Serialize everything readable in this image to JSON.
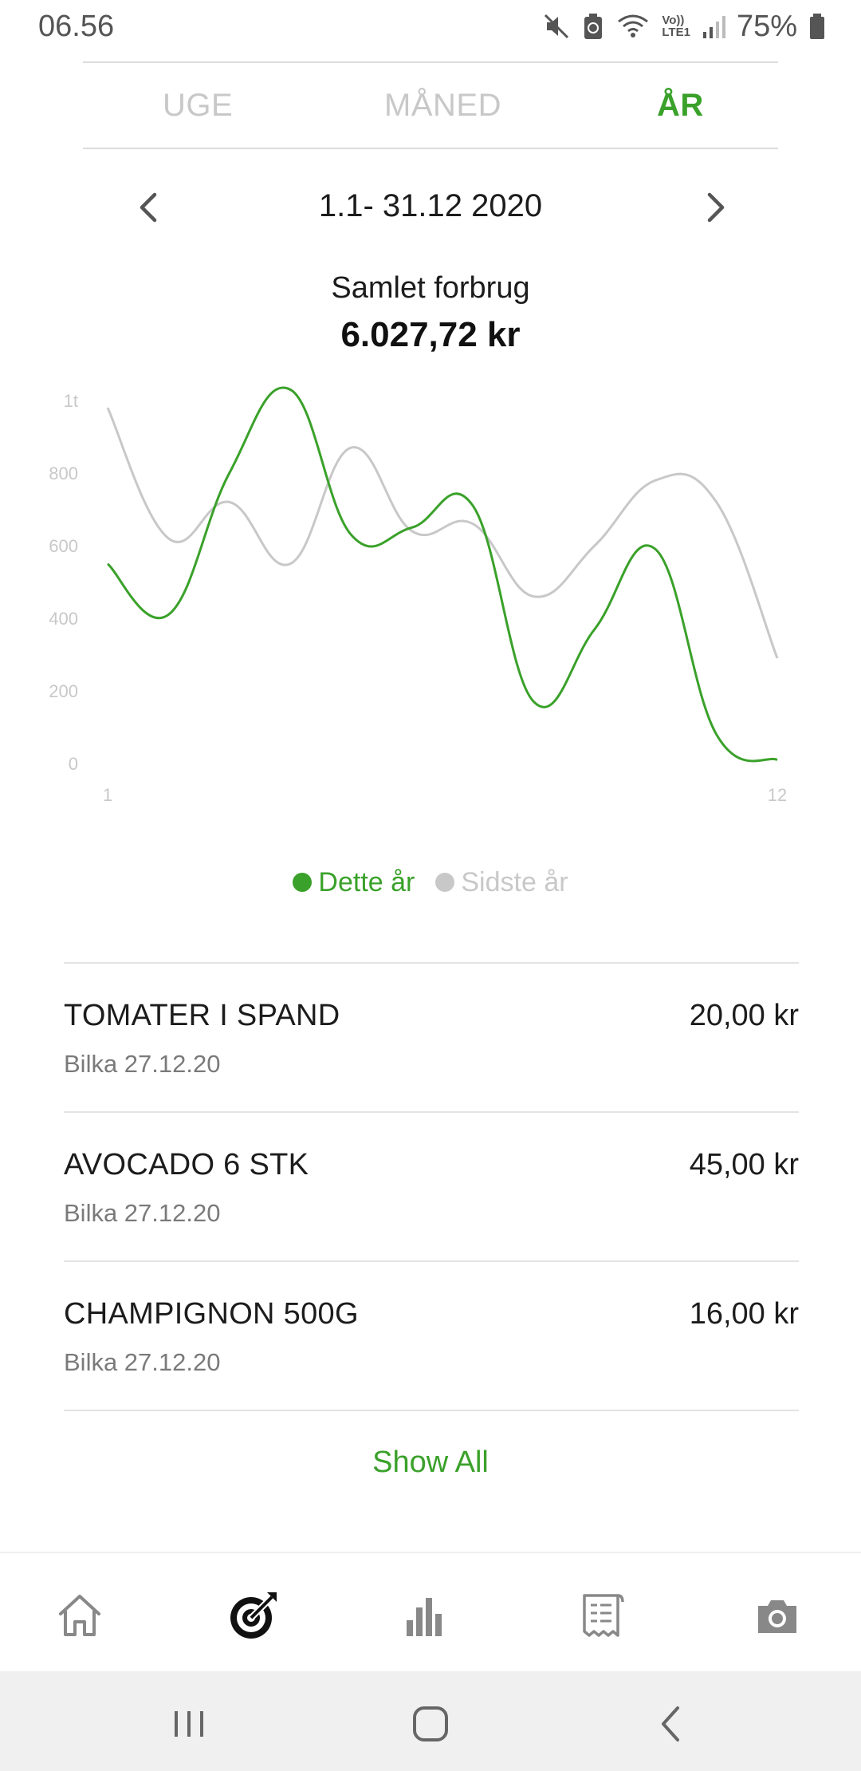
{
  "status_bar": {
    "time": "06.56",
    "battery_percent": "75%",
    "network_label_top": "Vo))",
    "network_label_bottom": "LTE1",
    "icons": [
      "mute-icon",
      "battery-saver-icon",
      "wifi-icon",
      "volte-icon",
      "signal-icon",
      "battery-icon"
    ]
  },
  "period_tabs": {
    "items": [
      {
        "label": "UGE",
        "active": false
      },
      {
        "label": "MÅNED",
        "active": false
      },
      {
        "label": "ÅR",
        "active": true
      }
    ]
  },
  "date_range": {
    "label": "1.1- 31.12 2020"
  },
  "summary": {
    "title": "Samlet forbrug",
    "total": "6.027,72 kr"
  },
  "chart_data": {
    "type": "line",
    "x": [
      1,
      2,
      3,
      4,
      5,
      6,
      7,
      8,
      9,
      10,
      11,
      12
    ],
    "x_tick_labels": [
      "1",
      "12"
    ],
    "y_tick_labels": [
      "0",
      "200",
      "400",
      "600",
      "800",
      "1t"
    ],
    "ylim": [
      0,
      1000
    ],
    "grid": false,
    "series": [
      {
        "name": "Dette år",
        "color": "#3aa12a",
        "values": [
          550,
          410,
          800,
          1030,
          630,
          650,
          710,
          170,
          370,
          590,
          80,
          10
        ]
      },
      {
        "name": "Sidste år",
        "color": "#c8c8c8",
        "values": [
          980,
          620,
          720,
          550,
          870,
          640,
          660,
          460,
          600,
          780,
          720,
          290
        ]
      }
    ],
    "legend_position": "bottom-center"
  },
  "legend": {
    "this_year": "Dette år",
    "last_year": "Sidste år"
  },
  "transactions": [
    {
      "name": "TOMATER I SPAND",
      "meta": "Bilka 27.12.20",
      "amount": "20,00 kr"
    },
    {
      "name": "AVOCADO 6 STK",
      "meta": "Bilka 27.12.20",
      "amount": "45,00 kr"
    },
    {
      "name": "CHAMPIGNON 500G",
      "meta": "Bilka 27.12.20",
      "amount": "16,00 kr"
    }
  ],
  "show_all_label": "Show All",
  "bottom_nav": {
    "items": [
      "home-icon",
      "target-icon",
      "bar-chart-icon",
      "receipt-icon",
      "camera-icon"
    ],
    "active": "target-icon"
  },
  "system_nav": [
    "recents-icon",
    "home-button-icon",
    "back-icon"
  ],
  "colors": {
    "accent": "#3aa12a",
    "muted": "#c8c8c8",
    "text": "#1c1c1c"
  }
}
